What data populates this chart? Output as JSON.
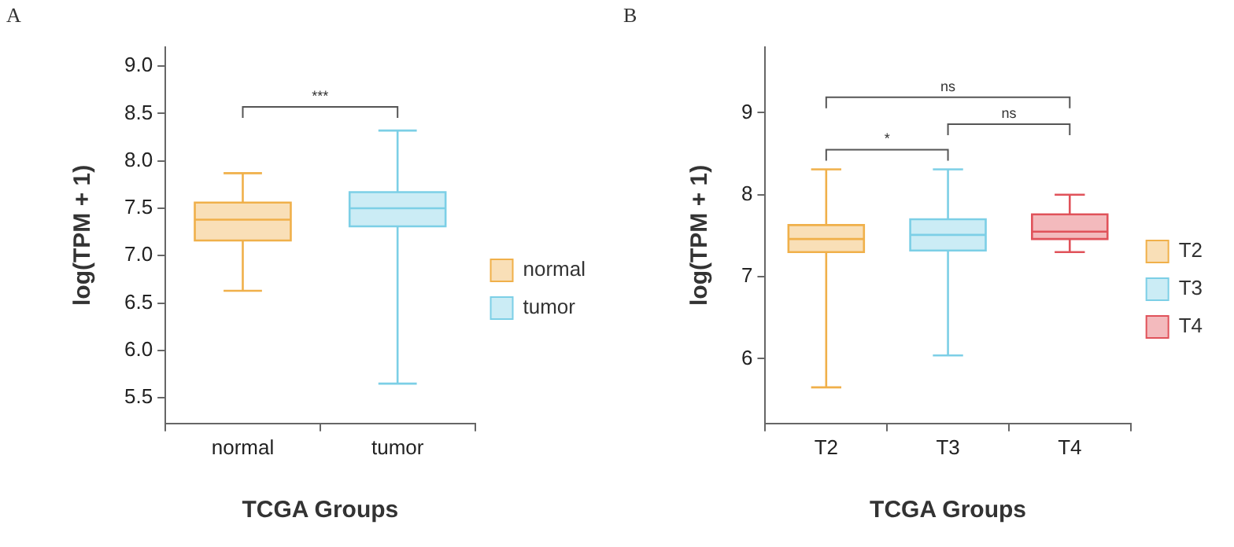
{
  "chart_data": [
    {
      "type": "box",
      "title": "A",
      "xlabel": "TCGA Groups",
      "ylabel": "log(TPM + 1)",
      "categories": [
        "normal",
        "tumor"
      ],
      "ylim": [
        5.23,
        9.2
      ],
      "yticks": [
        5.5,
        {
          "value": 6,
          "label": "6.0"
        },
        6.5,
        {
          "value": 7,
          "label": "7.0"
        },
        7.5,
        {
          "value": 8,
          "label": "8.0"
        },
        8.5,
        {
          "value": 9,
          "label": "9.0"
        }
      ],
      "grid": false,
      "legend": "right",
      "annotations": [
        "***"
      ],
      "series": [
        {
          "name": "normal",
          "color": "#f0b04a",
          "boxes": [
            {
              "low": 6.63,
              "q1": 7.16,
              "median": 7.38,
              "q3": 7.56,
              "high": 7.87
            },
            null
          ]
        },
        {
          "name": "tumor",
          "color": "#7ccfe6",
          "boxes": [
            null,
            {
              "low": 5.65,
              "q1": 7.31,
              "median": 7.5,
              "q3": 7.67,
              "high": 8.32
            }
          ]
        }
      ]
    },
    {
      "type": "box",
      "title": "B",
      "xlabel": "TCGA Groups",
      "ylabel": "log(TPM + 1)",
      "categories": [
        "T2",
        "T3",
        "T4"
      ],
      "ylim": [
        5.21,
        9.8
      ],
      "yticks": [
        6,
        7,
        8,
        9
      ],
      "grid": false,
      "legend": "right",
      "annotations": [
        "*",
        "ns",
        "ns"
      ],
      "series": [
        {
          "name": "T2",
          "color": "#f0b04a",
          "boxes": [
            {
              "low": 5.65,
              "q1": 7.3,
              "median": 7.46,
              "q3": 7.63,
              "high": 8.31
            },
            null,
            null
          ]
        },
        {
          "name": "T3",
          "color": "#7ccfe6",
          "boxes": [
            null,
            {
              "low": 6.04,
              "q1": 7.32,
              "median": 7.51,
              "q3": 7.7,
              "high": 8.31
            },
            null
          ]
        },
        {
          "name": "T4",
          "color": "#e0525a",
          "boxes": [
            null,
            null,
            {
              "low": 7.3,
              "q1": 7.46,
              "median": 7.55,
              "q3": 7.76,
              "high": 8.0
            }
          ]
        }
      ]
    }
  ]
}
